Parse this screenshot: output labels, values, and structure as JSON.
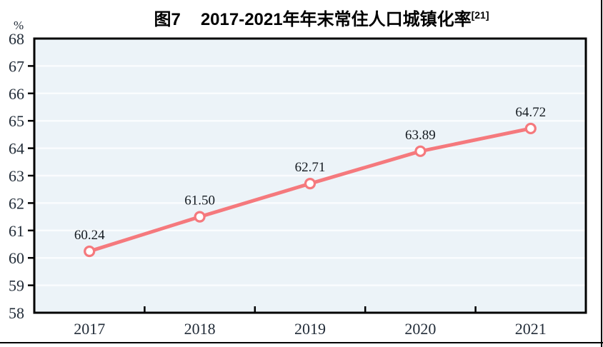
{
  "chart_data": {
    "type": "line",
    "title": "图7 2017-2021年年末常住人口城镇化率[21]",
    "title_prefix": "图7",
    "title_text": "2017-2021年年末常住人口城镇化率",
    "title_superscript": "[21]",
    "ylabel": "%",
    "xlabel": "",
    "categories": [
      "2017",
      "2018",
      "2019",
      "2020",
      "2021"
    ],
    "series": [
      {
        "name": "年末常住人口城镇化率",
        "values": [
          60.24,
          61.5,
          62.71,
          63.89,
          64.72
        ],
        "labels": [
          "60.24",
          "61.50",
          "62.71",
          "63.89",
          "64.72"
        ]
      }
    ],
    "ylim": [
      58,
      68
    ],
    "yticks": [
      58,
      59,
      60,
      61,
      62,
      63,
      64,
      65,
      66,
      67,
      68
    ],
    "grid": true,
    "legend": false,
    "colors": {
      "line": "#f5797d",
      "marker_fill": "#ffffff",
      "plot_bg": "#ecf3f8",
      "gridline": "#fafcfe",
      "axis": "#000000",
      "tick_label": "#222c38",
      "data_label": "#141a20"
    }
  }
}
